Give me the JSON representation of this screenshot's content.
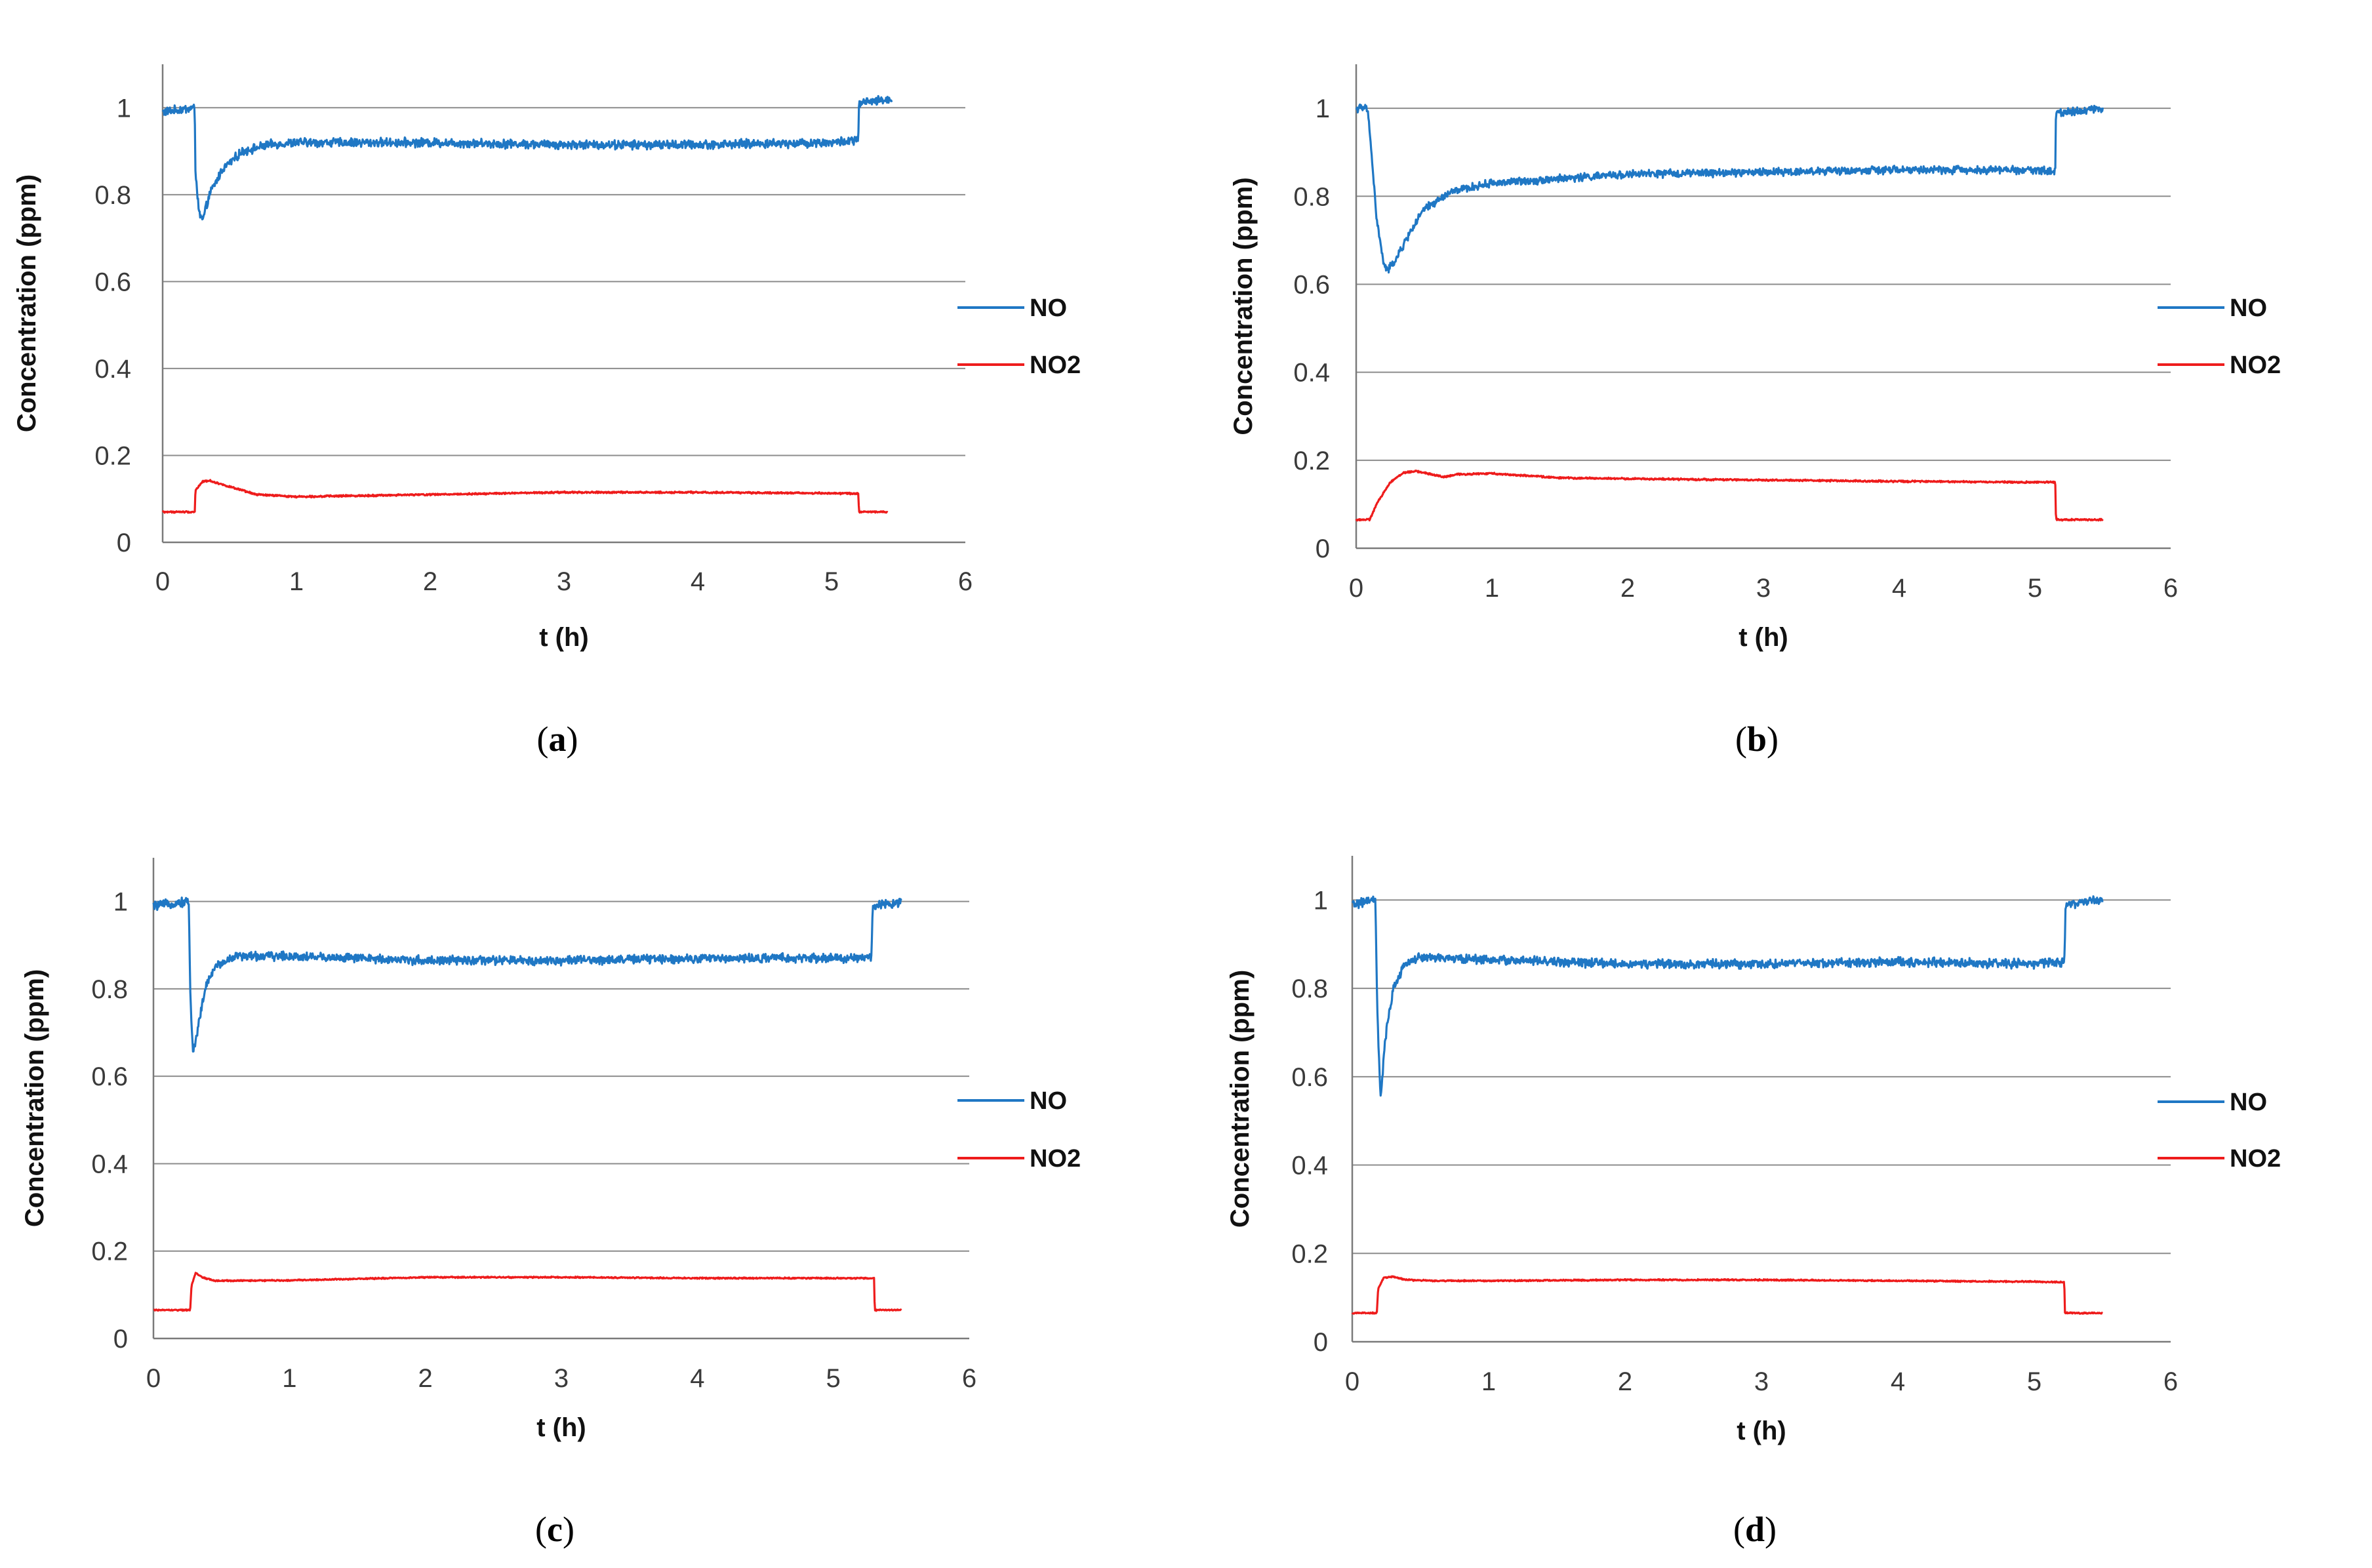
{
  "chart_data": [
    {
      "id": "a",
      "type": "line",
      "caption": {
        "open": "(",
        "letter": "a",
        "close": ")"
      },
      "xlabel": "t (h)",
      "ylabel": "Concentration (ppm)",
      "xlim": [
        0,
        6
      ],
      "ylim": [
        0,
        1.1
      ],
      "xticks": [
        "0",
        "1",
        "2",
        "3",
        "4",
        "5",
        "6"
      ],
      "yticks": [
        "0",
        "0.2",
        "0.4",
        "0.6",
        "0.8",
        "1"
      ],
      "legend_position": "right",
      "grid": true,
      "series": [
        {
          "name": "NO",
          "color": "#1f77c4",
          "noise": 0.008,
          "points": [
            [
              0,
              0.99
            ],
            [
              0.24,
              1.0
            ],
            [
              0.245,
              0.86
            ],
            [
              0.27,
              0.76
            ],
            [
              0.3,
              0.74
            ],
            [
              0.35,
              0.8
            ],
            [
              0.45,
              0.86
            ],
            [
              0.6,
              0.9
            ],
            [
              0.8,
              0.915
            ],
            [
              1.0,
              0.92
            ],
            [
              2.0,
              0.92
            ],
            [
              3.0,
              0.915
            ],
            [
              4.0,
              0.915
            ],
            [
              5.0,
              0.92
            ],
            [
              5.2,
              0.925
            ],
            [
              5.205,
              1.01
            ],
            [
              5.45,
              1.02
            ]
          ]
        },
        {
          "name": "NO2",
          "color": "#ee1c1c",
          "noise": 0.0015,
          "points": [
            [
              0,
              0.07
            ],
            [
              0.24,
              0.07
            ],
            [
              0.245,
              0.12
            ],
            [
              0.3,
              0.14
            ],
            [
              0.35,
              0.142
            ],
            [
              0.5,
              0.128
            ],
            [
              0.7,
              0.11
            ],
            [
              1.0,
              0.105
            ],
            [
              2.0,
              0.11
            ],
            [
              3.0,
              0.115
            ],
            [
              4.0,
              0.115
            ],
            [
              5.0,
              0.113
            ],
            [
              5.2,
              0.112
            ],
            [
              5.205,
              0.07
            ],
            [
              5.42,
              0.07
            ]
          ]
        }
      ]
    },
    {
      "id": "b",
      "type": "line",
      "caption": {
        "open": "(",
        "letter": "b",
        "close": ")"
      },
      "xlabel": "t (h)",
      "ylabel": "Concentration (ppm)",
      "xlim": [
        0,
        6
      ],
      "ylim": [
        0,
        1.1
      ],
      "xticks": [
        "0",
        "1",
        "2",
        "3",
        "4",
        "5",
        "6"
      ],
      "yticks": [
        "0",
        "0.2",
        "0.4",
        "0.6",
        "0.8",
        "1"
      ],
      "legend_position": "right",
      "grid": true,
      "series": [
        {
          "name": "NO",
          "color": "#1f77c4",
          "noise": 0.007,
          "points": [
            [
              0,
              1.0
            ],
            [
              0.08,
              1.0
            ],
            [
              0.1,
              0.95
            ],
            [
              0.15,
              0.75
            ],
            [
              0.2,
              0.65
            ],
            [
              0.23,
              0.63
            ],
            [
              0.3,
              0.66
            ],
            [
              0.4,
              0.72
            ],
            [
              0.5,
              0.77
            ],
            [
              0.7,
              0.81
            ],
            [
              1.0,
              0.83
            ],
            [
              2.0,
              0.85
            ],
            [
              3.0,
              0.855
            ],
            [
              4.0,
              0.86
            ],
            [
              5.0,
              0.86
            ],
            [
              5.15,
              0.855
            ],
            [
              5.155,
              0.99
            ],
            [
              5.5,
              1.0
            ]
          ]
        },
        {
          "name": "NO2",
          "color": "#ee1c1c",
          "noise": 0.0015,
          "points": [
            [
              0,
              0.065
            ],
            [
              0.1,
              0.065
            ],
            [
              0.15,
              0.1
            ],
            [
              0.25,
              0.15
            ],
            [
              0.35,
              0.172
            ],
            [
              0.45,
              0.175
            ],
            [
              0.55,
              0.168
            ],
            [
              0.65,
              0.162
            ],
            [
              0.75,
              0.168
            ],
            [
              1.0,
              0.17
            ],
            [
              1.5,
              0.16
            ],
            [
              2.0,
              0.158
            ],
            [
              3.0,
              0.155
            ],
            [
              4.0,
              0.152
            ],
            [
              5.0,
              0.15
            ],
            [
              5.15,
              0.15
            ],
            [
              5.155,
              0.065
            ],
            [
              5.5,
              0.065
            ]
          ]
        }
      ]
    },
    {
      "id": "c",
      "type": "line",
      "caption": {
        "open": "(",
        "letter": "c",
        "close": ")"
      },
      "xlabel": "t (h)",
      "ylabel": "Concentration (ppm)",
      "xlim": [
        0,
        6
      ],
      "ylim": [
        0,
        1.1
      ],
      "xticks": [
        "0",
        "1",
        "2",
        "3",
        "4",
        "5",
        "6"
      ],
      "yticks": [
        "0",
        "0.2",
        "0.4",
        "0.6",
        "0.8",
        "1"
      ],
      "legend_position": "right",
      "grid": true,
      "series": [
        {
          "name": "NO",
          "color": "#1f77c4",
          "noise": 0.008,
          "points": [
            [
              0,
              0.99
            ],
            [
              0.26,
              1.0
            ],
            [
              0.27,
              0.8
            ],
            [
              0.29,
              0.65
            ],
            [
              0.32,
              0.7
            ],
            [
              0.38,
              0.8
            ],
            [
              0.45,
              0.85
            ],
            [
              0.6,
              0.875
            ],
            [
              1.0,
              0.875
            ],
            [
              2.0,
              0.865
            ],
            [
              3.0,
              0.865
            ],
            [
              4.0,
              0.87
            ],
            [
              5.0,
              0.87
            ],
            [
              5.28,
              0.87
            ],
            [
              5.29,
              0.99
            ],
            [
              5.5,
              1.0
            ]
          ]
        },
        {
          "name": "NO2",
          "color": "#ee1c1c",
          "noise": 0.0012,
          "points": [
            [
              0,
              0.065
            ],
            [
              0.27,
              0.065
            ],
            [
              0.28,
              0.12
            ],
            [
              0.31,
              0.15
            ],
            [
              0.36,
              0.14
            ],
            [
              0.45,
              0.132
            ],
            [
              1.0,
              0.133
            ],
            [
              2.0,
              0.14
            ],
            [
              3.0,
              0.14
            ],
            [
              4.0,
              0.138
            ],
            [
              5.0,
              0.138
            ],
            [
              5.3,
              0.138
            ],
            [
              5.305,
              0.065
            ],
            [
              5.5,
              0.065
            ]
          ]
        }
      ]
    },
    {
      "id": "d",
      "type": "line",
      "caption": {
        "open": "(",
        "letter": "d",
        "close": ")"
      },
      "xlabel": "t (h)",
      "ylabel": "Concentration (ppm)",
      "xlim": [
        0,
        6
      ],
      "ylim": [
        0,
        1.1
      ],
      "xticks": [
        "0",
        "1",
        "2",
        "3",
        "4",
        "5",
        "6"
      ],
      "yticks": [
        "0",
        "0.2",
        "0.4",
        "0.6",
        "0.8",
        "1"
      ],
      "legend_position": "right",
      "grid": true,
      "series": [
        {
          "name": "NO",
          "color": "#1f77c4",
          "noise": 0.008,
          "points": [
            [
              0,
              0.99
            ],
            [
              0.17,
              1.0
            ],
            [
              0.18,
              0.8
            ],
            [
              0.2,
              0.6
            ],
            [
              0.21,
              0.55
            ],
            [
              0.24,
              0.68
            ],
            [
              0.3,
              0.8
            ],
            [
              0.4,
              0.86
            ],
            [
              0.5,
              0.87
            ],
            [
              1.0,
              0.865
            ],
            [
              2.0,
              0.855
            ],
            [
              3.0,
              0.855
            ],
            [
              4.0,
              0.86
            ],
            [
              5.0,
              0.855
            ],
            [
              5.22,
              0.86
            ],
            [
              5.23,
              0.99
            ],
            [
              5.5,
              1.0
            ]
          ]
        },
        {
          "name": "NO2",
          "color": "#ee1c1c",
          "noise": 0.0012,
          "points": [
            [
              0,
              0.065
            ],
            [
              0.18,
              0.065
            ],
            [
              0.19,
              0.12
            ],
            [
              0.23,
              0.145
            ],
            [
              0.3,
              0.147
            ],
            [
              0.4,
              0.14
            ],
            [
              0.6,
              0.138
            ],
            [
              1.0,
              0.138
            ],
            [
              2.0,
              0.14
            ],
            [
              3.0,
              0.14
            ],
            [
              4.0,
              0.138
            ],
            [
              5.0,
              0.136
            ],
            [
              5.22,
              0.135
            ],
            [
              5.225,
              0.065
            ],
            [
              5.5,
              0.065
            ]
          ]
        }
      ]
    }
  ]
}
